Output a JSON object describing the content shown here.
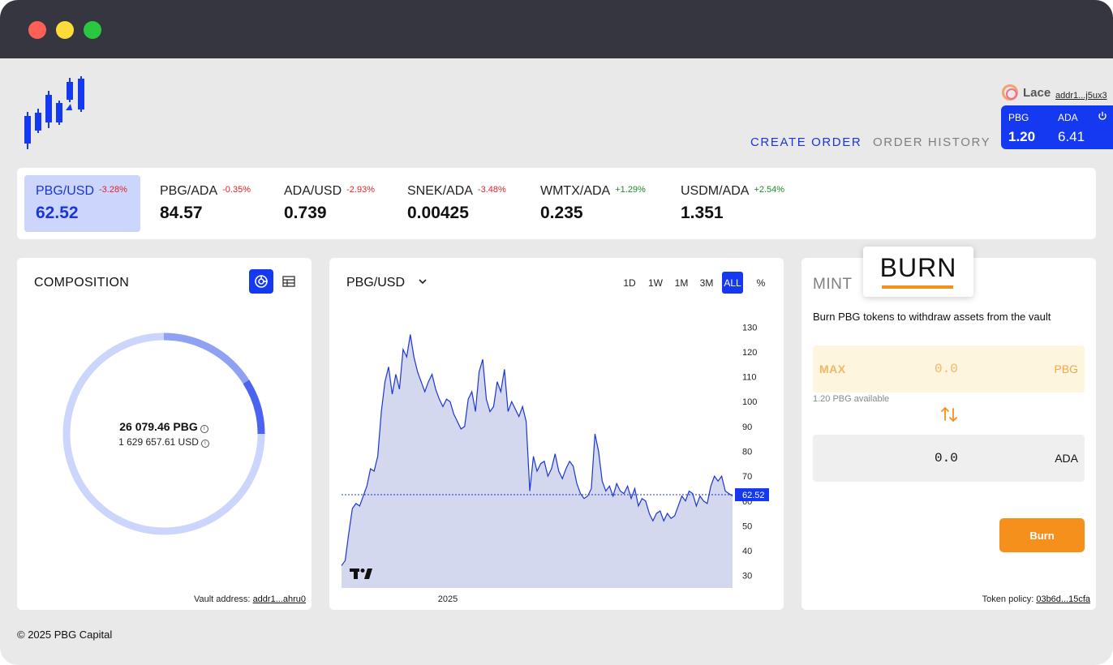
{
  "window": {
    "controls": [
      "close",
      "minimize",
      "maximize"
    ]
  },
  "nav": {
    "create_order": "CREATE ORDER",
    "order_history": "ORDER HISTORY"
  },
  "wallet": {
    "name": "Lace",
    "address": "addr1...j5ux3",
    "balances": [
      {
        "token": "PBG",
        "amount": "1.20"
      },
      {
        "token": "ADA",
        "amount": "6.41"
      }
    ]
  },
  "tickers": [
    {
      "pair": "PBG/USD",
      "change": "-3.28%",
      "price": "62.52"
    },
    {
      "pair": "PBG/ADA",
      "change": "-0.35%",
      "price": "84.57"
    },
    {
      "pair": "ADA/USD",
      "change": "-2.93%",
      "price": "0.739"
    },
    {
      "pair": "SNEK/ADA",
      "change": "-3.48%",
      "price": "0.00425"
    },
    {
      "pair": "WMTX/ADA",
      "change": "+1.29%",
      "price": "0.235"
    },
    {
      "pair": "USDM/ADA",
      "change": "+2.54%",
      "price": "1.351"
    }
  ],
  "composition": {
    "title": "COMPOSITION",
    "total_pbg": "26 079.46 PBG",
    "total_usd": "1 629 657.61 USD",
    "vault_label": "Vault address:",
    "vault_address": "addr1...ahru0",
    "segments": [
      {
        "share": 0.09,
        "color": "#4b63ee"
      },
      {
        "share": 0.16,
        "color": "#8fa1f3"
      },
      {
        "share": 0.75,
        "color": "#ccd5fb"
      }
    ]
  },
  "chart": {
    "pair": "PBG/USD",
    "timeframes": [
      "1D",
      "1W",
      "1M",
      "3M",
      "ALL",
      "%"
    ],
    "active_timeframe": "ALL",
    "x_label": "2025"
  },
  "chart_data": {
    "type": "area",
    "series": [
      {
        "values": [
          34,
          36,
          47,
          57,
          59,
          58,
          62,
          66,
          73,
          72,
          78,
          96,
          108,
          114,
          103,
          111,
          105,
          121,
          118,
          127,
          118,
          112,
          108,
          104,
          108,
          111,
          105,
          101,
          98,
          101,
          100,
          95,
          92,
          89,
          90,
          101,
          104,
          96,
          112,
          117,
          101,
          96,
          98,
          108,
          104,
          113,
          96,
          100,
          97,
          94,
          98,
          92,
          64,
          78,
          72,
          75,
          76,
          70,
          73,
          79,
          72,
          69,
          73,
          76,
          74,
          67,
          63,
          61,
          62,
          65,
          87,
          80,
          68,
          64,
          66,
          62,
          67,
          64,
          63,
          66,
          61,
          65,
          58,
          61,
          60,
          55,
          52,
          55,
          56,
          52,
          55,
          53,
          54,
          58,
          62,
          60,
          64,
          63,
          58,
          62,
          60,
          59,
          66,
          70,
          68,
          70,
          64,
          63,
          62
        ],
        "last_price": "62.52"
      }
    ],
    "ylim": [
      25,
      135
    ],
    "y_ticks": [
      "130",
      "120",
      "110",
      "100",
      "90",
      "80",
      "70",
      "60",
      "50",
      "40",
      "30"
    ],
    "x_ticks": [
      "2025"
    ],
    "current_price_label": "62.52",
    "line_color": "#1b35d6",
    "fill_color": "#d3d8ee"
  },
  "mint": {
    "tab_mint": "MINT",
    "tab_burn": "BURN",
    "description": "Burn PBG tokens to withdraw assets from the vault",
    "max_label": "MAX",
    "input_value": "0.0",
    "input_token": "PBG",
    "available": "1.20 PBG available",
    "output_value": "0.0",
    "output_token": "ADA",
    "burn_button": "Burn",
    "policy_label": "Token policy:",
    "policy_value": "03b6d...15cfa"
  },
  "footer": {
    "copyright": "© 2025 PBG Capital"
  },
  "colors": {
    "accent": "#1539f0",
    "burn": "#f5901c",
    "negative": "#e02424",
    "positive": "#1d8a2c"
  }
}
